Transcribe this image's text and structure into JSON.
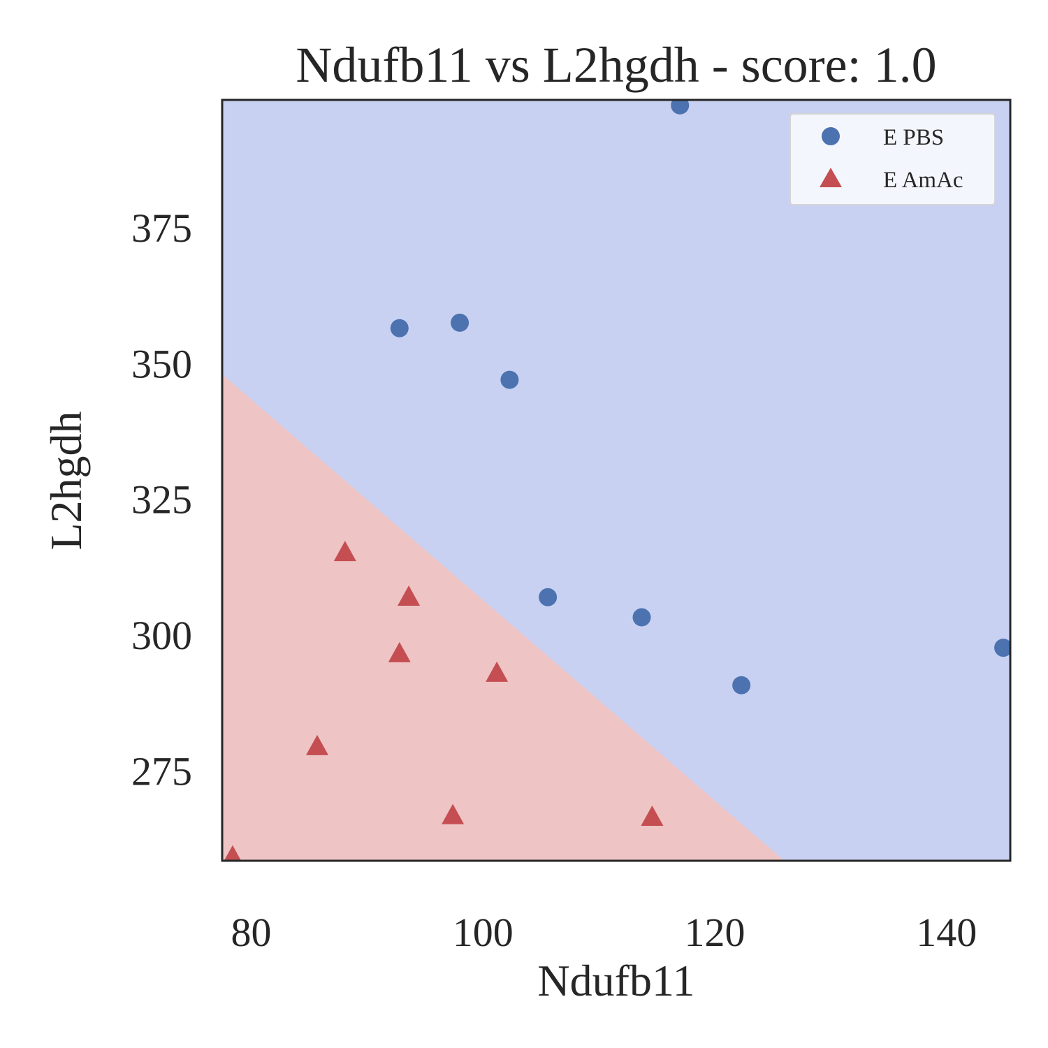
{
  "chart_data": {
    "type": "scatter",
    "title": "Ndufb11 vs L2hgdh - score: 1.0",
    "xlabel": "Ndufb11",
    "ylabel": "L2hgdh",
    "xlim": [
      77.5,
      145.5
    ],
    "ylim": [
      258.5,
      398.5
    ],
    "xticks": [
      80,
      100,
      120,
      140
    ],
    "yticks": [
      275,
      300,
      325,
      350,
      375
    ],
    "grid": false,
    "legend_position": "top-right",
    "decision_boundary": {
      "points": [
        [
          77.5,
          348.0
        ],
        [
          126.0,
          258.5
        ]
      ],
      "above_class": "E PBS",
      "below_class": "E AmAc",
      "above_color": "#c9d1f2",
      "below_color": "#eec4c4"
    },
    "series": [
      {
        "name": "E PBS",
        "marker": "circle",
        "color": "#4c72b0",
        "points": [
          [
            117.0,
            397.5
          ],
          [
            92.8,
            356.5
          ],
          [
            98.0,
            357.5
          ],
          [
            102.3,
            347.0
          ],
          [
            105.6,
            307.0
          ],
          [
            113.7,
            303.3
          ],
          [
            122.3,
            290.8
          ],
          [
            144.9,
            297.7
          ]
        ]
      },
      {
        "name": "E AmAc",
        "marker": "triangle",
        "color": "#c44e52",
        "points": [
          [
            88.1,
            315.3
          ],
          [
            93.6,
            307.1
          ],
          [
            92.8,
            296.7
          ],
          [
            101.2,
            293.1
          ],
          [
            85.7,
            279.6
          ],
          [
            97.4,
            266.9
          ],
          [
            114.6,
            266.6
          ],
          [
            78.4,
            259.3
          ]
        ]
      }
    ]
  }
}
